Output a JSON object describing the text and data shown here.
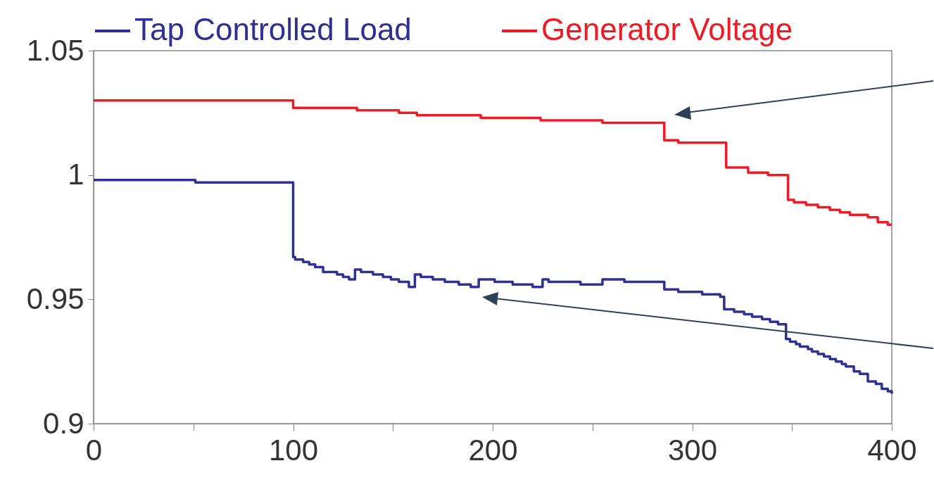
{
  "chart_data": {
    "type": "step",
    "xlim": [
      0,
      400
    ],
    "ylim": [
      0.9,
      1.05
    ],
    "xticks": [
      0,
      {
        "value": 50,
        "label": null
      },
      100,
      {
        "value": 150,
        "label": null
      },
      200,
      {
        "value": 250,
        "label": null
      },
      300,
      {
        "value": 350,
        "label": null
      },
      400
    ],
    "yticks": [
      0.9,
      0.95,
      1,
      1.05
    ],
    "grid": false,
    "legend": "top",
    "line_style": "solid",
    "marker": "none",
    "series": [
      {
        "name": "Tap Controlled Load",
        "color": "#2e3192",
        "x": [
          0,
          51,
          100,
          101,
          105,
          108,
          111,
          115,
          118,
          122,
          125,
          128,
          131,
          134,
          140,
          145,
          149,
          153,
          158,
          161,
          164,
          170,
          176,
          183,
          189,
          193,
          201,
          210,
          220,
          225,
          228,
          244,
          255,
          266,
          286,
          293,
          305,
          314,
          316,
          321,
          326,
          330,
          335,
          339,
          343,
          347,
          349,
          352,
          354,
          358,
          360,
          363,
          366,
          369,
          372,
          375,
          377,
          381,
          384,
          388,
          392,
          395,
          398,
          400
        ],
        "values": [
          0.998,
          0.997,
          0.967,
          0.966,
          0.965,
          0.964,
          0.963,
          0.961,
          0.961,
          0.96,
          0.959,
          0.958,
          0.962,
          0.961,
          0.96,
          0.959,
          0.958,
          0.957,
          0.955,
          0.96,
          0.959,
          0.958,
          0.957,
          0.956,
          0.955,
          0.958,
          0.957,
          0.956,
          0.955,
          0.958,
          0.957,
          0.956,
          0.958,
          0.957,
          0.954,
          0.953,
          0.952,
          0.951,
          0.946,
          0.945,
          0.944,
          0.943,
          0.942,
          0.941,
          0.94,
          0.934,
          0.933,
          0.932,
          0.931,
          0.93,
          0.929,
          0.928,
          0.927,
          0.926,
          0.925,
          0.924,
          0.923,
          0.921,
          0.92,
          0.917,
          0.916,
          0.914,
          0.913,
          0.912
        ]
      },
      {
        "name": "Generator Voltage",
        "color": "#ed1c24",
        "x": [
          0,
          100,
          132,
          153,
          162,
          194,
          224,
          255,
          286,
          293,
          317,
          328,
          338,
          348,
          351,
          357,
          363,
          369,
          374,
          379,
          388,
          393,
          398,
          400
        ],
        "values": [
          1.03,
          1.027,
          1.026,
          1.025,
          1.024,
          1.023,
          1.022,
          1.021,
          1.014,
          1.013,
          1.003,
          1.001,
          1.0,
          0.99,
          0.989,
          0.988,
          0.987,
          0.986,
          0.985,
          0.984,
          0.983,
          0.981,
          0.98,
          0.98
        ]
      }
    ]
  }
}
